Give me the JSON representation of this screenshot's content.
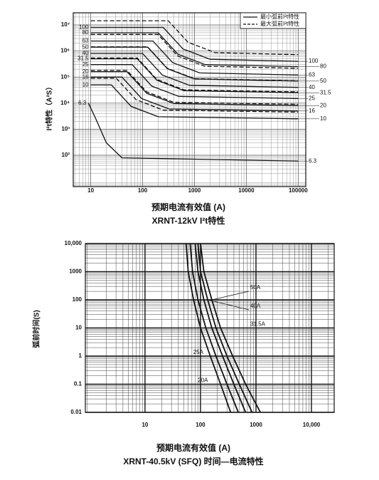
{
  "chart_data": [
    {
      "type": "line",
      "log_x": true,
      "log_y": true,
      "title": "XRNT-12kV I²t特性",
      "x_label": "预期电流有效值 (A)",
      "y_label": "I²t特性（A²S）",
      "xlim": [
        4.6,
        140000
      ],
      "ylim": [
        6.3,
        29000000
      ],
      "xticks": [
        10,
        100,
        1000,
        10000,
        100000
      ],
      "yticks": [
        {
          "value": 100,
          "label": "10²"
        },
        {
          "value": 1000,
          "label": "10³"
        },
        {
          "value": 10000,
          "label": "10⁴"
        },
        {
          "value": 100000,
          "label": "10⁵"
        },
        {
          "value": 1000000,
          "label": "10⁶"
        },
        {
          "value": 10000000,
          "label": "10⁷"
        }
      ],
      "grid": true,
      "legend": [
        {
          "label": "最小弧前I²t特性",
          "style": "solid"
        },
        {
          "label": "最大弧前I²t特性",
          "style": "dashed"
        }
      ],
      "series": [
        {
          "name": "100",
          "style": "solid",
          "color": "#111111",
          "x": [
            10,
            250,
            600,
            2000,
            100000
          ],
          "values": [
            8000000,
            8000000,
            1200000,
            480000,
            400000
          ]
        },
        {
          "name": "80",
          "style": "solid",
          "color": "#111111",
          "x": [
            10,
            200,
            480,
            1600,
            100000
          ],
          "values": [
            5000000,
            5000000,
            750000,
            300000,
            250000
          ]
        },
        {
          "name": "63",
          "style": "solid",
          "color": "#111111",
          "x": [
            10,
            158,
            378,
            1260,
            100000
          ],
          "values": [
            2400000,
            2400000,
            360000,
            144000,
            120000
          ]
        },
        {
          "name": "50",
          "style": "solid",
          "color": "#111111",
          "x": [
            10,
            125,
            300,
            1000,
            100000
          ],
          "values": [
            1400000,
            1400000,
            210000,
            84000,
            70000
          ]
        },
        {
          "name": "40",
          "style": "solid",
          "color": "#111111",
          "x": [
            10,
            100,
            240,
            800,
            100000
          ],
          "values": [
            800000,
            800000,
            120000,
            48000,
            40000
          ]
        },
        {
          "name": "31.5",
          "style": "solid",
          "color": "#111111",
          "x": [
            10,
            79,
            189,
            630,
            100000
          ],
          "values": [
            500000,
            500000,
            75000,
            30000,
            25000
          ]
        },
        {
          "name": "25",
          "style": "solid",
          "color": "#111111",
          "x": [
            10,
            63,
            150,
            500,
            100000
          ],
          "values": [
            300000,
            300000,
            45000,
            18000,
            15000
          ]
        },
        {
          "name": "20",
          "style": "solid",
          "color": "#111111",
          "x": [
            10,
            50,
            120,
            400,
            100000
          ],
          "values": [
            160000,
            160000,
            24000,
            9600,
            8000
          ]
        },
        {
          "name": "16",
          "style": "solid",
          "color": "#111111",
          "x": [
            10,
            40,
            96,
            320,
            100000
          ],
          "values": [
            100000,
            100000,
            15000,
            6000,
            5000
          ]
        },
        {
          "name": "10",
          "style": "solid",
          "color": "#111111",
          "x": [
            10,
            25,
            60,
            200,
            100000
          ],
          "values": [
            50000,
            50000,
            7500,
            3000,
            2500
          ]
        },
        {
          "name": "6.3",
          "style": "solid",
          "color": "#111111",
          "x": [
            9,
            12,
            20,
            40,
            100000
          ],
          "values": [
            10000,
            3000,
            300,
            80,
            60
          ]
        },
        {
          "style": "dashed",
          "color": "#111111",
          "x": [
            10,
            312,
            750,
            2500,
            100000
          ],
          "values": [
            14400000,
            14400000,
            2160000,
            864000,
            720000
          ]
        },
        {
          "style": "dashed",
          "color": "#111111",
          "x": [
            10,
            198,
            472,
            1575,
            100000
          ],
          "values": [
            4320000,
            4320000,
            648000,
            259200,
            216000
          ]
        },
        {
          "style": "dashed",
          "color": "#111111",
          "x": [
            10,
            125,
            300,
            1000,
            100000
          ],
          "values": [
            1440000,
            1440000,
            216000,
            86400,
            72000
          ]
        },
        {
          "style": "dashed",
          "color": "#111111",
          "x": [
            10,
            79,
            188,
            625,
            100000
          ],
          "values": [
            540000,
            540000,
            81000,
            32400,
            27000
          ]
        },
        {
          "style": "dashed",
          "color": "#111111",
          "x": [
            10,
            50,
            120,
            400,
            100000
          ],
          "values": [
            180000,
            180000,
            27000,
            10800,
            9000
          ]
        },
        {
          "style": "dashed",
          "color": "#111111",
          "x": [
            10,
            31,
            75,
            250,
            100000
          ],
          "values": [
            90000,
            90000,
            13500,
            5400,
            4500
          ]
        }
      ]
    },
    {
      "type": "line",
      "log_x": true,
      "log_y": true,
      "title": "XRNT-40.5kV (SFQ) 时间—电流特性",
      "x_label": "预期电流有效值 (A)",
      "y_label": "弧前时间(S)",
      "xlim": [
        0.84,
        25700
      ],
      "ylim": [
        0.01,
        10000
      ],
      "xticks": [
        10,
        100,
        1000,
        {
          "value": 10000,
          "label": "10,000"
        }
      ],
      "yticks": [
        0.01,
        0.1,
        1,
        10,
        100,
        1000,
        {
          "value": 10000,
          "label": "10,000"
        }
      ],
      "grid": true,
      "series": [
        {
          "name": "20A",
          "style": "solid",
          "color": "#111111",
          "x": [
            55,
            60,
            75,
            100,
            150,
            230,
            350
          ],
          "values": [
            10000,
            1000,
            100,
            10,
            1,
            0.1,
            0.01
          ]
        },
        {
          "name": "25A",
          "style": "solid",
          "color": "#111111",
          "x": [
            65,
            72,
            90,
            125,
            190,
            300,
            480
          ],
          "values": [
            10000,
            1000,
            100,
            10,
            1,
            0.1,
            0.01
          ]
        },
        {
          "name": "31.5A",
          "style": "solid",
          "color": "#111111",
          "x": [
            80,
            90,
            115,
            160,
            250,
            400,
            650
          ],
          "values": [
            10000,
            1000,
            100,
            10,
            1,
            0.1,
            0.01
          ]
        },
        {
          "name": "40A",
          "style": "solid",
          "color": "#111111",
          "x": [
            90,
            100,
            135,
            190,
            300,
            500,
            850
          ],
          "values": [
            10000,
            1000,
            100,
            10,
            1,
            0.1,
            0.01
          ]
        },
        {
          "name": "50A",
          "style": "solid",
          "color": "#111111",
          "x": [
            100,
            115,
            160,
            230,
            380,
            650,
            1200
          ],
          "values": [
            10000,
            1000,
            100,
            10,
            1,
            0.1,
            0.01
          ]
        }
      ]
    }
  ]
}
